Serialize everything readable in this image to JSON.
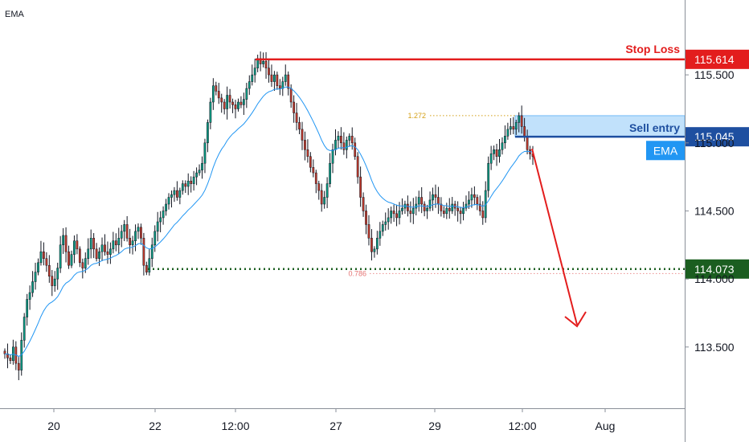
{
  "indicator_label": "EMA",
  "colors": {
    "up": "#089981",
    "down": "#c0392b",
    "ema": "#2196f3",
    "stop": "#e31d1d",
    "entry": "#1e4fa0",
    "entry_zone": "#bbdefb",
    "target": "#1b5e20",
    "ema_badge": "#2196f3",
    "fib_1272": "#d4a017",
    "fib_0786": "#e57373"
  },
  "chart_data": {
    "type": "candlestick",
    "symbol_indicator": "EMA",
    "y_ticks": [
      "115.500",
      "115.000",
      "114.500",
      "114.000",
      "113.500"
    ],
    "y_tick_values": [
      115.5,
      115.0,
      114.5,
      114.0,
      113.5
    ],
    "x_ticks": [
      "20",
      "22",
      "12:00",
      "27",
      "29",
      "12:00",
      "Aug"
    ],
    "ylim": [
      113.05,
      116.05
    ],
    "levels": {
      "stop_loss": {
        "label": "Stop Loss",
        "value": 115.614,
        "value_label": "115.614"
      },
      "sell_entry": {
        "label": "Sell entry",
        "value": 115.045,
        "value_label": "115.045"
      },
      "take_profit": {
        "value": 114.073,
        "value_label": "114.073"
      },
      "ema": {
        "label": "EMA",
        "value": 114.95
      },
      "fib_1272": {
        "label": "1.272",
        "value": 115.2
      },
      "fib_0786": {
        "label": "0.786",
        "value": 114.04
      }
    },
    "entry_zone": {
      "top": 115.2,
      "bottom": 115.045
    },
    "closes": [
      113.45,
      113.42,
      113.4,
      113.5,
      113.38,
      113.33,
      113.55,
      113.72,
      113.85,
      113.9,
      113.98,
      114.05,
      114.12,
      114.2,
      114.15,
      114.1,
      114.02,
      113.95,
      114.0,
      114.08,
      114.25,
      114.32,
      114.2,
      114.1,
      114.18,
      114.28,
      114.22,
      114.12,
      114.08,
      114.15,
      114.22,
      114.3,
      114.22,
      114.15,
      114.2,
      114.25,
      114.2,
      114.18,
      114.22,
      114.28,
      114.25,
      114.3,
      114.35,
      114.4,
      114.3,
      114.25,
      114.28,
      114.35,
      114.38,
      114.3,
      114.1,
      114.05,
      114.15,
      114.25,
      114.35,
      114.42,
      114.45,
      114.5,
      114.55,
      114.6,
      114.62,
      114.65,
      114.6,
      114.65,
      114.7,
      114.68,
      114.72,
      114.7,
      114.75,
      114.78,
      114.8,
      114.85,
      115.0,
      115.15,
      115.3,
      115.42,
      115.38,
      115.33,
      115.3,
      115.25,
      115.35,
      115.3,
      115.28,
      115.25,
      115.3,
      115.28,
      115.32,
      115.4,
      115.45,
      115.5,
      115.55,
      115.62,
      115.58,
      115.6,
      115.55,
      115.5,
      115.45,
      115.5,
      115.42,
      115.4,
      115.45,
      115.5,
      115.4,
      115.3,
      115.22,
      115.15,
      115.1,
      115.02,
      114.95,
      114.9,
      114.82,
      114.78,
      114.7,
      114.65,
      114.55,
      114.6,
      114.7,
      114.85,
      114.95,
      115.02,
      115.05,
      115.0,
      114.95,
      115.02,
      115.05,
      115.0,
      114.9,
      114.75,
      114.6,
      114.5,
      114.4,
      114.3,
      114.2,
      114.22,
      114.3,
      114.35,
      114.4,
      114.42,
      114.45,
      114.5,
      114.48,
      114.45,
      114.5,
      114.52,
      114.55,
      114.5,
      114.48,
      114.52,
      114.55,
      114.6,
      114.55,
      114.5,
      114.52,
      114.58,
      114.62,
      114.6,
      114.55,
      114.5,
      114.48,
      114.52,
      114.5,
      114.55,
      114.52,
      114.5,
      114.48,
      114.52,
      114.55,
      114.58,
      114.62,
      114.6,
      114.55,
      114.5,
      114.45,
      114.65,
      114.85,
      114.92,
      114.95,
      114.9,
      114.95,
      115.0,
      115.05,
      115.1,
      115.12,
      115.1,
      115.15,
      115.2,
      115.12,
      115.05,
      114.95,
      114.92,
      114.9
    ]
  }
}
